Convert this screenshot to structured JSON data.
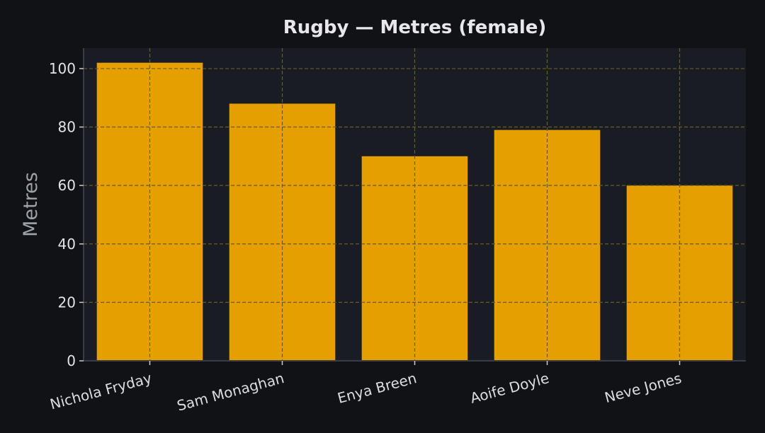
{
  "chart_data": {
    "type": "bar",
    "title": "Rugby — Metres (female)",
    "xlabel": "",
    "ylabel": "Metres",
    "categories": [
      "Nichola Fryday",
      "Sam Monaghan",
      "Enya Breen",
      "Aoife Doyle",
      "Neve Jones"
    ],
    "values": [
      102,
      88,
      70,
      79,
      60
    ],
    "ylim": [
      0,
      107
    ],
    "yticks": [
      0,
      20,
      40,
      60,
      80,
      100
    ],
    "grid": true,
    "legend": "none",
    "colors": {
      "background": "#111216",
      "plot_area": "#1a1c23",
      "bar": "#e59f00",
      "grid": "#6b5a2a",
      "axis": "#3a3d45"
    }
  }
}
